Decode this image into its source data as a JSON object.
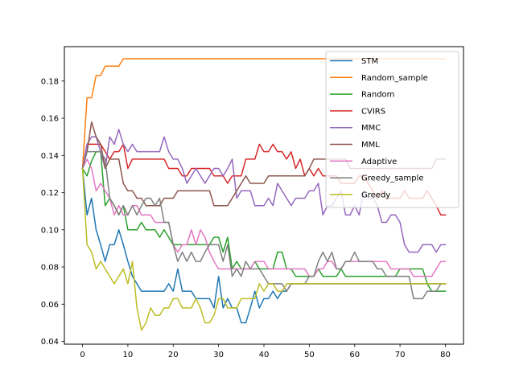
{
  "chart_data": {
    "type": "line",
    "title": "",
    "xlabel": "",
    "ylabel": "",
    "xlim": [
      -4,
      84
    ],
    "ylim": [
      0.0385,
      0.1985
    ],
    "xticks": [
      0,
      10,
      20,
      30,
      40,
      50,
      60,
      70,
      80
    ],
    "xtick_labels": [
      "0",
      "10",
      "20",
      "30",
      "40",
      "50",
      "60",
      "70",
      "80"
    ],
    "yticks": [
      0.04,
      0.06,
      0.08,
      0.1,
      0.12,
      0.14,
      0.16,
      0.18
    ],
    "ytick_labels": [
      "0.04",
      "0.06",
      "0.08",
      "0.10",
      "0.12",
      "0.14",
      "0.16",
      "0.18"
    ],
    "grid": false,
    "legend_position": "upper-right",
    "x": [
      0,
      1,
      2,
      3,
      4,
      5,
      6,
      7,
      8,
      9,
      10,
      11,
      12,
      13,
      14,
      15,
      16,
      17,
      18,
      19,
      20,
      21,
      22,
      23,
      24,
      25,
      26,
      27,
      28,
      29,
      30,
      31,
      32,
      33,
      34,
      35,
      36,
      37,
      38,
      39,
      40,
      41,
      42,
      43,
      44,
      45,
      46,
      47,
      48,
      49,
      50,
      51,
      52,
      53,
      54,
      55,
      56,
      57,
      58,
      59,
      60,
      61,
      62,
      63,
      64,
      65,
      66,
      67,
      68,
      69,
      70,
      71,
      72,
      73,
      74,
      75,
      76,
      77,
      78,
      79,
      80
    ],
    "series": [
      {
        "name": "STM",
        "color": "#1f77b4",
        "values": [
          0.133,
          0.108,
          0.117,
          0.1,
          0.092,
          0.083,
          0.092,
          0.092,
          0.1,
          0.092,
          0.083,
          0.075,
          0.071,
          0.067,
          0.067,
          0.067,
          0.067,
          0.067,
          0.067,
          0.071,
          0.067,
          0.079,
          0.067,
          0.067,
          0.067,
          0.063,
          0.063,
          0.063,
          0.063,
          0.058,
          0.075,
          0.058,
          0.063,
          0.058,
          0.058,
          0.05,
          0.05,
          0.058,
          0.067,
          0.058,
          0.063,
          0.063,
          0.067,
          0.063,
          0.067,
          0.067,
          0.071,
          0.071,
          0.071,
          0.071,
          0.071,
          0.071,
          0.071,
          0.071,
          0.071,
          0.071,
          0.071,
          0.071,
          0.071,
          0.071,
          0.071,
          0.071,
          0.071,
          0.071,
          0.071,
          0.071,
          0.071,
          0.071,
          0.071,
          0.071,
          0.071,
          0.071,
          0.071,
          0.071,
          0.071,
          0.071,
          0.071,
          0.071,
          0.071,
          0.071,
          0.071
        ]
      },
      {
        "name": "Random_sample",
        "color": "#ff7f0e",
        "values": [
          0.133,
          0.171,
          0.171,
          0.183,
          0.183,
          0.188,
          0.188,
          0.188,
          0.188,
          0.192,
          0.192,
          0.192,
          0.192,
          0.192,
          0.192,
          0.192,
          0.192,
          0.192,
          0.192,
          0.192,
          0.192,
          0.192,
          0.192,
          0.192,
          0.192,
          0.192,
          0.192,
          0.192,
          0.192,
          0.192,
          0.192,
          0.192,
          0.192,
          0.192,
          0.192,
          0.192,
          0.192,
          0.192,
          0.192,
          0.192,
          0.192,
          0.192,
          0.192,
          0.192,
          0.192,
          0.192,
          0.192,
          0.192,
          0.192,
          0.192,
          0.192,
          0.192,
          0.192,
          0.192,
          0.192,
          0.192,
          0.192,
          0.192,
          0.192,
          0.192,
          0.192,
          0.192,
          0.192,
          0.192,
          0.192,
          0.192,
          0.192,
          0.192,
          0.192,
          0.192,
          0.192,
          0.192,
          0.192,
          0.192,
          0.192,
          0.192,
          0.192,
          0.192,
          0.192,
          0.192,
          0.192
        ]
      },
      {
        "name": "Random",
        "color": "#2ca02c",
        "values": [
          0.133,
          0.129,
          0.137,
          0.142,
          0.142,
          0.113,
          0.117,
          0.113,
          0.108,
          0.113,
          0.1,
          0.1,
          0.1,
          0.104,
          0.1,
          0.1,
          0.1,
          0.096,
          0.1,
          0.096,
          0.092,
          0.092,
          0.092,
          0.092,
          0.092,
          0.092,
          0.092,
          0.092,
          0.092,
          0.096,
          0.096,
          0.088,
          0.096,
          0.079,
          0.083,
          0.079,
          0.079,
          0.079,
          0.083,
          0.079,
          0.079,
          0.079,
          0.079,
          0.088,
          0.088,
          0.079,
          0.079,
          0.075,
          0.075,
          0.075,
          0.075,
          0.075,
          0.079,
          0.075,
          0.075,
          0.075,
          0.075,
          0.079,
          0.075,
          0.075,
          0.075,
          0.075,
          0.075,
          0.075,
          0.075,
          0.075,
          0.075,
          0.075,
          0.075,
          0.075,
          0.079,
          0.079,
          0.079,
          0.079,
          0.079,
          0.079,
          0.071,
          0.067,
          0.067,
          0.067,
          0.067
        ]
      },
      {
        "name": "CVIRS",
        "color": "#d62728",
        "values": [
          0.133,
          0.146,
          0.146,
          0.146,
          0.146,
          0.142,
          0.138,
          0.142,
          0.142,
          0.146,
          0.133,
          0.138,
          0.138,
          0.138,
          0.138,
          0.138,
          0.138,
          0.138,
          0.138,
          0.133,
          0.133,
          0.133,
          0.129,
          0.129,
          0.133,
          0.133,
          0.133,
          0.133,
          0.133,
          0.129,
          0.129,
          0.129,
          0.125,
          0.129,
          0.129,
          0.129,
          0.138,
          0.138,
          0.138,
          0.146,
          0.142,
          0.142,
          0.146,
          0.142,
          0.142,
          0.138,
          0.142,
          0.133,
          0.138,
          0.129,
          0.133,
          0.129,
          0.133,
          0.129,
          0.129,
          0.129,
          0.129,
          0.125,
          0.125,
          0.125,
          0.125,
          0.129,
          0.129,
          0.125,
          0.121,
          0.117,
          0.121,
          0.117,
          0.117,
          0.117,
          0.117,
          0.121,
          0.117,
          0.117,
          0.117,
          0.117,
          0.121,
          0.117,
          0.113,
          0.108,
          0.108
        ]
      },
      {
        "name": "MMC",
        "color": "#9467bd",
        "values": [
          0.133,
          0.146,
          0.15,
          0.15,
          0.142,
          0.133,
          0.15,
          0.146,
          0.154,
          0.146,
          0.142,
          0.146,
          0.142,
          0.142,
          0.142,
          0.142,
          0.142,
          0.142,
          0.15,
          0.142,
          0.138,
          0.138,
          0.133,
          0.125,
          0.129,
          0.133,
          0.129,
          0.125,
          0.129,
          0.133,
          0.133,
          0.129,
          0.133,
          0.138,
          0.117,
          0.121,
          0.121,
          0.121,
          0.113,
          0.113,
          0.113,
          0.117,
          0.113,
          0.125,
          0.121,
          0.117,
          0.113,
          0.117,
          0.117,
          0.117,
          0.121,
          0.121,
          0.125,
          0.108,
          0.113,
          0.113,
          0.117,
          0.121,
          0.108,
          0.108,
          0.113,
          0.108,
          0.121,
          0.117,
          0.117,
          0.113,
          0.104,
          0.104,
          0.108,
          0.108,
          0.104,
          0.092,
          0.088,
          0.088,
          0.088,
          0.092,
          0.092,
          0.092,
          0.088,
          0.092,
          0.092
        ]
      },
      {
        "name": "MML",
        "color": "#8c564b",
        "values": [
          0.133,
          0.142,
          0.158,
          0.15,
          0.146,
          0.133,
          0.138,
          0.138,
          0.138,
          0.125,
          0.121,
          0.121,
          0.117,
          0.117,
          0.113,
          0.113,
          0.113,
          0.113,
          0.117,
          0.117,
          0.117,
          0.121,
          0.121,
          0.121,
          0.121,
          0.121,
          0.121,
          0.121,
          0.121,
          0.113,
          0.113,
          0.113,
          0.113,
          0.117,
          0.121,
          0.125,
          0.129,
          0.125,
          0.125,
          0.125,
          0.125,
          0.129,
          0.129,
          0.129,
          0.129,
          0.129,
          0.129,
          0.129,
          0.129,
          0.129,
          0.133,
          0.138,
          0.138,
          0.138,
          0.138,
          0.138,
          0.138,
          0.138,
          0.138,
          0.133,
          0.133,
          0.133,
          0.133,
          0.133,
          0.133,
          0.133,
          0.133,
          0.133,
          0.133,
          0.133,
          0.133,
          0.133,
          0.133,
          0.133,
          0.133,
          0.133,
          0.133,
          0.133,
          0.138,
          0.138,
          0.138
        ]
      },
      {
        "name": "Adaptive",
        "color": "#e377c2",
        "values": [
          0.133,
          0.138,
          0.133,
          0.121,
          0.125,
          0.121,
          0.117,
          0.108,
          0.113,
          0.108,
          0.108,
          0.113,
          0.113,
          0.108,
          0.108,
          0.108,
          0.104,
          0.104,
          0.104,
          0.104,
          0.092,
          0.088,
          0.092,
          0.092,
          0.1,
          0.092,
          0.1,
          0.096,
          0.088,
          0.083,
          0.079,
          0.079,
          0.079,
          0.079,
          0.079,
          0.079,
          0.079,
          0.079,
          0.083,
          0.083,
          0.083,
          0.079,
          0.079,
          0.079,
          0.079,
          0.079,
          0.079,
          0.079,
          0.079,
          0.079,
          0.075,
          0.075,
          0.079,
          0.079,
          0.083,
          0.083,
          0.079,
          0.079,
          0.083,
          0.083,
          0.083,
          0.083,
          0.083,
          0.083,
          0.083,
          0.083,
          0.083,
          0.083,
          0.079,
          0.079,
          0.079,
          0.079,
          0.079,
          0.075,
          0.075,
          0.075,
          0.075,
          0.075,
          0.079,
          0.083,
          0.083
        ]
      },
      {
        "name": "Greedy_sample",
        "color": "#7f7f7f",
        "values": [
          0.133,
          0.142,
          0.142,
          0.142,
          0.142,
          0.138,
          0.117,
          0.113,
          0.108,
          0.113,
          0.108,
          0.113,
          0.108,
          0.113,
          0.117,
          0.117,
          0.113,
          0.117,
          0.104,
          0.104,
          0.092,
          0.083,
          0.088,
          0.083,
          0.088,
          0.083,
          0.083,
          0.088,
          0.092,
          0.092,
          0.092,
          0.083,
          0.092,
          0.075,
          0.079,
          0.075,
          0.083,
          0.079,
          0.079,
          0.079,
          0.075,
          0.071,
          0.071,
          0.071,
          0.071,
          0.067,
          0.071,
          0.071,
          0.071,
          0.071,
          0.075,
          0.075,
          0.083,
          0.088,
          0.083,
          0.088,
          0.079,
          0.079,
          0.083,
          0.083,
          0.088,
          0.083,
          0.083,
          0.083,
          0.083,
          0.079,
          0.079,
          0.075,
          0.075,
          0.075,
          0.075,
          0.075,
          0.075,
          0.063,
          0.063,
          0.063,
          0.067,
          0.067,
          0.067,
          0.071,
          0.071
        ]
      },
      {
        "name": "Greedy",
        "color": "#bcbd22",
        "values": [
          0.133,
          0.092,
          0.088,
          0.079,
          0.083,
          0.079,
          0.075,
          0.071,
          0.075,
          0.079,
          0.071,
          0.083,
          0.058,
          0.046,
          0.05,
          0.058,
          0.054,
          0.054,
          0.058,
          0.058,
          0.063,
          0.063,
          0.058,
          0.058,
          0.058,
          0.063,
          0.058,
          0.05,
          0.05,
          0.054,
          0.063,
          0.063,
          0.058,
          0.058,
          0.058,
          0.063,
          0.063,
          0.063,
          0.063,
          0.071,
          0.067,
          0.071,
          0.071,
          0.067,
          0.067,
          0.071,
          0.071,
          0.071,
          0.071,
          0.071,
          0.071,
          0.071,
          0.071,
          0.071,
          0.071,
          0.071,
          0.071,
          0.071,
          0.071,
          0.071,
          0.071,
          0.071,
          0.071,
          0.071,
          0.071,
          0.071,
          0.071,
          0.071,
          0.071,
          0.071,
          0.071,
          0.071,
          0.071,
          0.071,
          0.071,
          0.071,
          0.071,
          0.071,
          0.071,
          0.071,
          0.071
        ]
      }
    ]
  }
}
